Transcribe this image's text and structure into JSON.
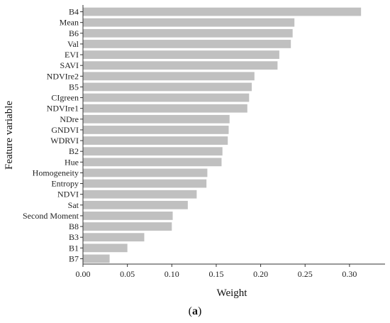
{
  "chart_data": {
    "type": "bar",
    "orientation": "horizontal",
    "xlabel": "Weight",
    "ylabel": "Feature variable",
    "xlim": [
      0,
      0.34
    ],
    "xticks": [
      "0.00",
      "0.05",
      "0.10",
      "0.15",
      "0.20",
      "0.25",
      "0.30"
    ],
    "bar_color": "#c0c0c0",
    "categories": [
      "B4",
      "Mean",
      "B6",
      "Val",
      "EVI",
      "SAVI",
      "NDVIre2",
      "B5",
      "CIgreen",
      "NDVIre1",
      "NDre",
      "GNDVI",
      "WDRVI",
      "B2",
      "Hue",
      "Homogeneity",
      "Entropy",
      "NDVI",
      "Sat",
      "Second Moment",
      "B8",
      "B3",
      "B1",
      "B7"
    ],
    "values": [
      0.313,
      0.238,
      0.236,
      0.234,
      0.221,
      0.219,
      0.193,
      0.19,
      0.187,
      0.185,
      0.165,
      0.164,
      0.163,
      0.157,
      0.156,
      0.14,
      0.139,
      0.128,
      0.118,
      0.101,
      0.1,
      0.069,
      0.05,
      0.03
    ]
  },
  "caption": {
    "open": "(",
    "letter": "a",
    "close": ")"
  }
}
